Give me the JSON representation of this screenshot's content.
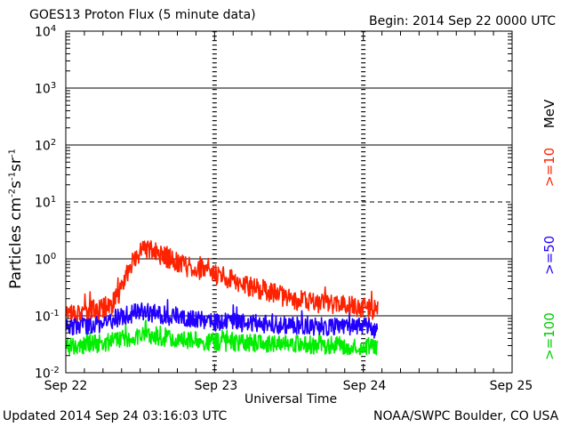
{
  "header": {
    "title": "GOES13 Proton Flux (5 minute data)",
    "begin": "Begin: 2014 Sep 22 0000 UTC"
  },
  "footer": {
    "updated": "Updated 2014 Sep 24 03:16:03 UTC",
    "credit": "NOAA/SWPC Boulder, CO USA"
  },
  "chart_data": {
    "type": "line",
    "title": "GOES13 Proton Flux (5 minute data)",
    "xlabel": "Universal Time",
    "ylabel": "Particles cm-2s-1sr-1",
    "yscale": "log",
    "ylim": [
      0.01,
      10000
    ],
    "xlim_days": [
      0,
      3
    ],
    "x_tick_labels": [
      "Sep 22",
      "Sep 23",
      "Sep 24",
      "Sep 25"
    ],
    "y_tick_labels": [
      {
        "base": "10",
        "exp": "4"
      },
      {
        "base": "10",
        "exp": "3"
      },
      {
        "base": "10",
        "exp": "2"
      },
      {
        "base": "10",
        "exp": "1"
      },
      {
        "base": "10",
        "exp": "0"
      },
      {
        "base": "10",
        "exp": "-1"
      },
      {
        "base": "10",
        "exp": "-2"
      }
    ],
    "threshold_lines": [
      {
        "value": 10,
        "style": "dashed"
      },
      {
        "value": 1,
        "style": "solid"
      },
      {
        "value": 0.1,
        "style": "solid"
      }
    ],
    "grid": "horizontal decades; dotted day markers",
    "unit_label": "MeV",
    "series": [
      {
        "name": ">=10",
        "color": "#ff2200",
        "x_days": [
          0,
          0.1,
          0.2,
          0.3,
          0.35,
          0.4,
          0.45,
          0.5,
          0.55,
          0.6,
          0.7,
          0.8,
          0.9,
          1.0,
          1.1,
          1.2,
          1.3,
          1.4,
          1.5,
          1.6,
          1.7,
          1.8,
          1.9,
          2.0,
          2.05,
          2.1
        ],
        "y_values": [
          0.12,
          0.12,
          0.13,
          0.15,
          0.22,
          0.45,
          0.9,
          1.3,
          1.5,
          1.3,
          1.0,
          0.8,
          0.65,
          0.55,
          0.45,
          0.35,
          0.3,
          0.25,
          0.2,
          0.18,
          0.17,
          0.16,
          0.15,
          0.14,
          0.13,
          0.12
        ]
      },
      {
        "name": ">=50",
        "color": "#2200ff",
        "x_days": [
          0,
          0.2,
          0.4,
          0.5,
          0.6,
          0.8,
          1.0,
          1.2,
          1.4,
          1.6,
          1.8,
          2.0,
          2.1
        ],
        "y_values": [
          0.065,
          0.07,
          0.1,
          0.12,
          0.11,
          0.09,
          0.08,
          0.075,
          0.07,
          0.068,
          0.066,
          0.065,
          0.06
        ]
      },
      {
        "name": ">=100",
        "color": "#00ee00",
        "x_days": [
          0,
          0.2,
          0.4,
          0.5,
          0.6,
          0.8,
          1.0,
          1.2,
          1.4,
          1.6,
          1.8,
          2.0,
          2.1
        ],
        "y_values": [
          0.03,
          0.032,
          0.04,
          0.045,
          0.042,
          0.038,
          0.035,
          0.033,
          0.032,
          0.031,
          0.03,
          0.03,
          0.029
        ]
      }
    ]
  }
}
